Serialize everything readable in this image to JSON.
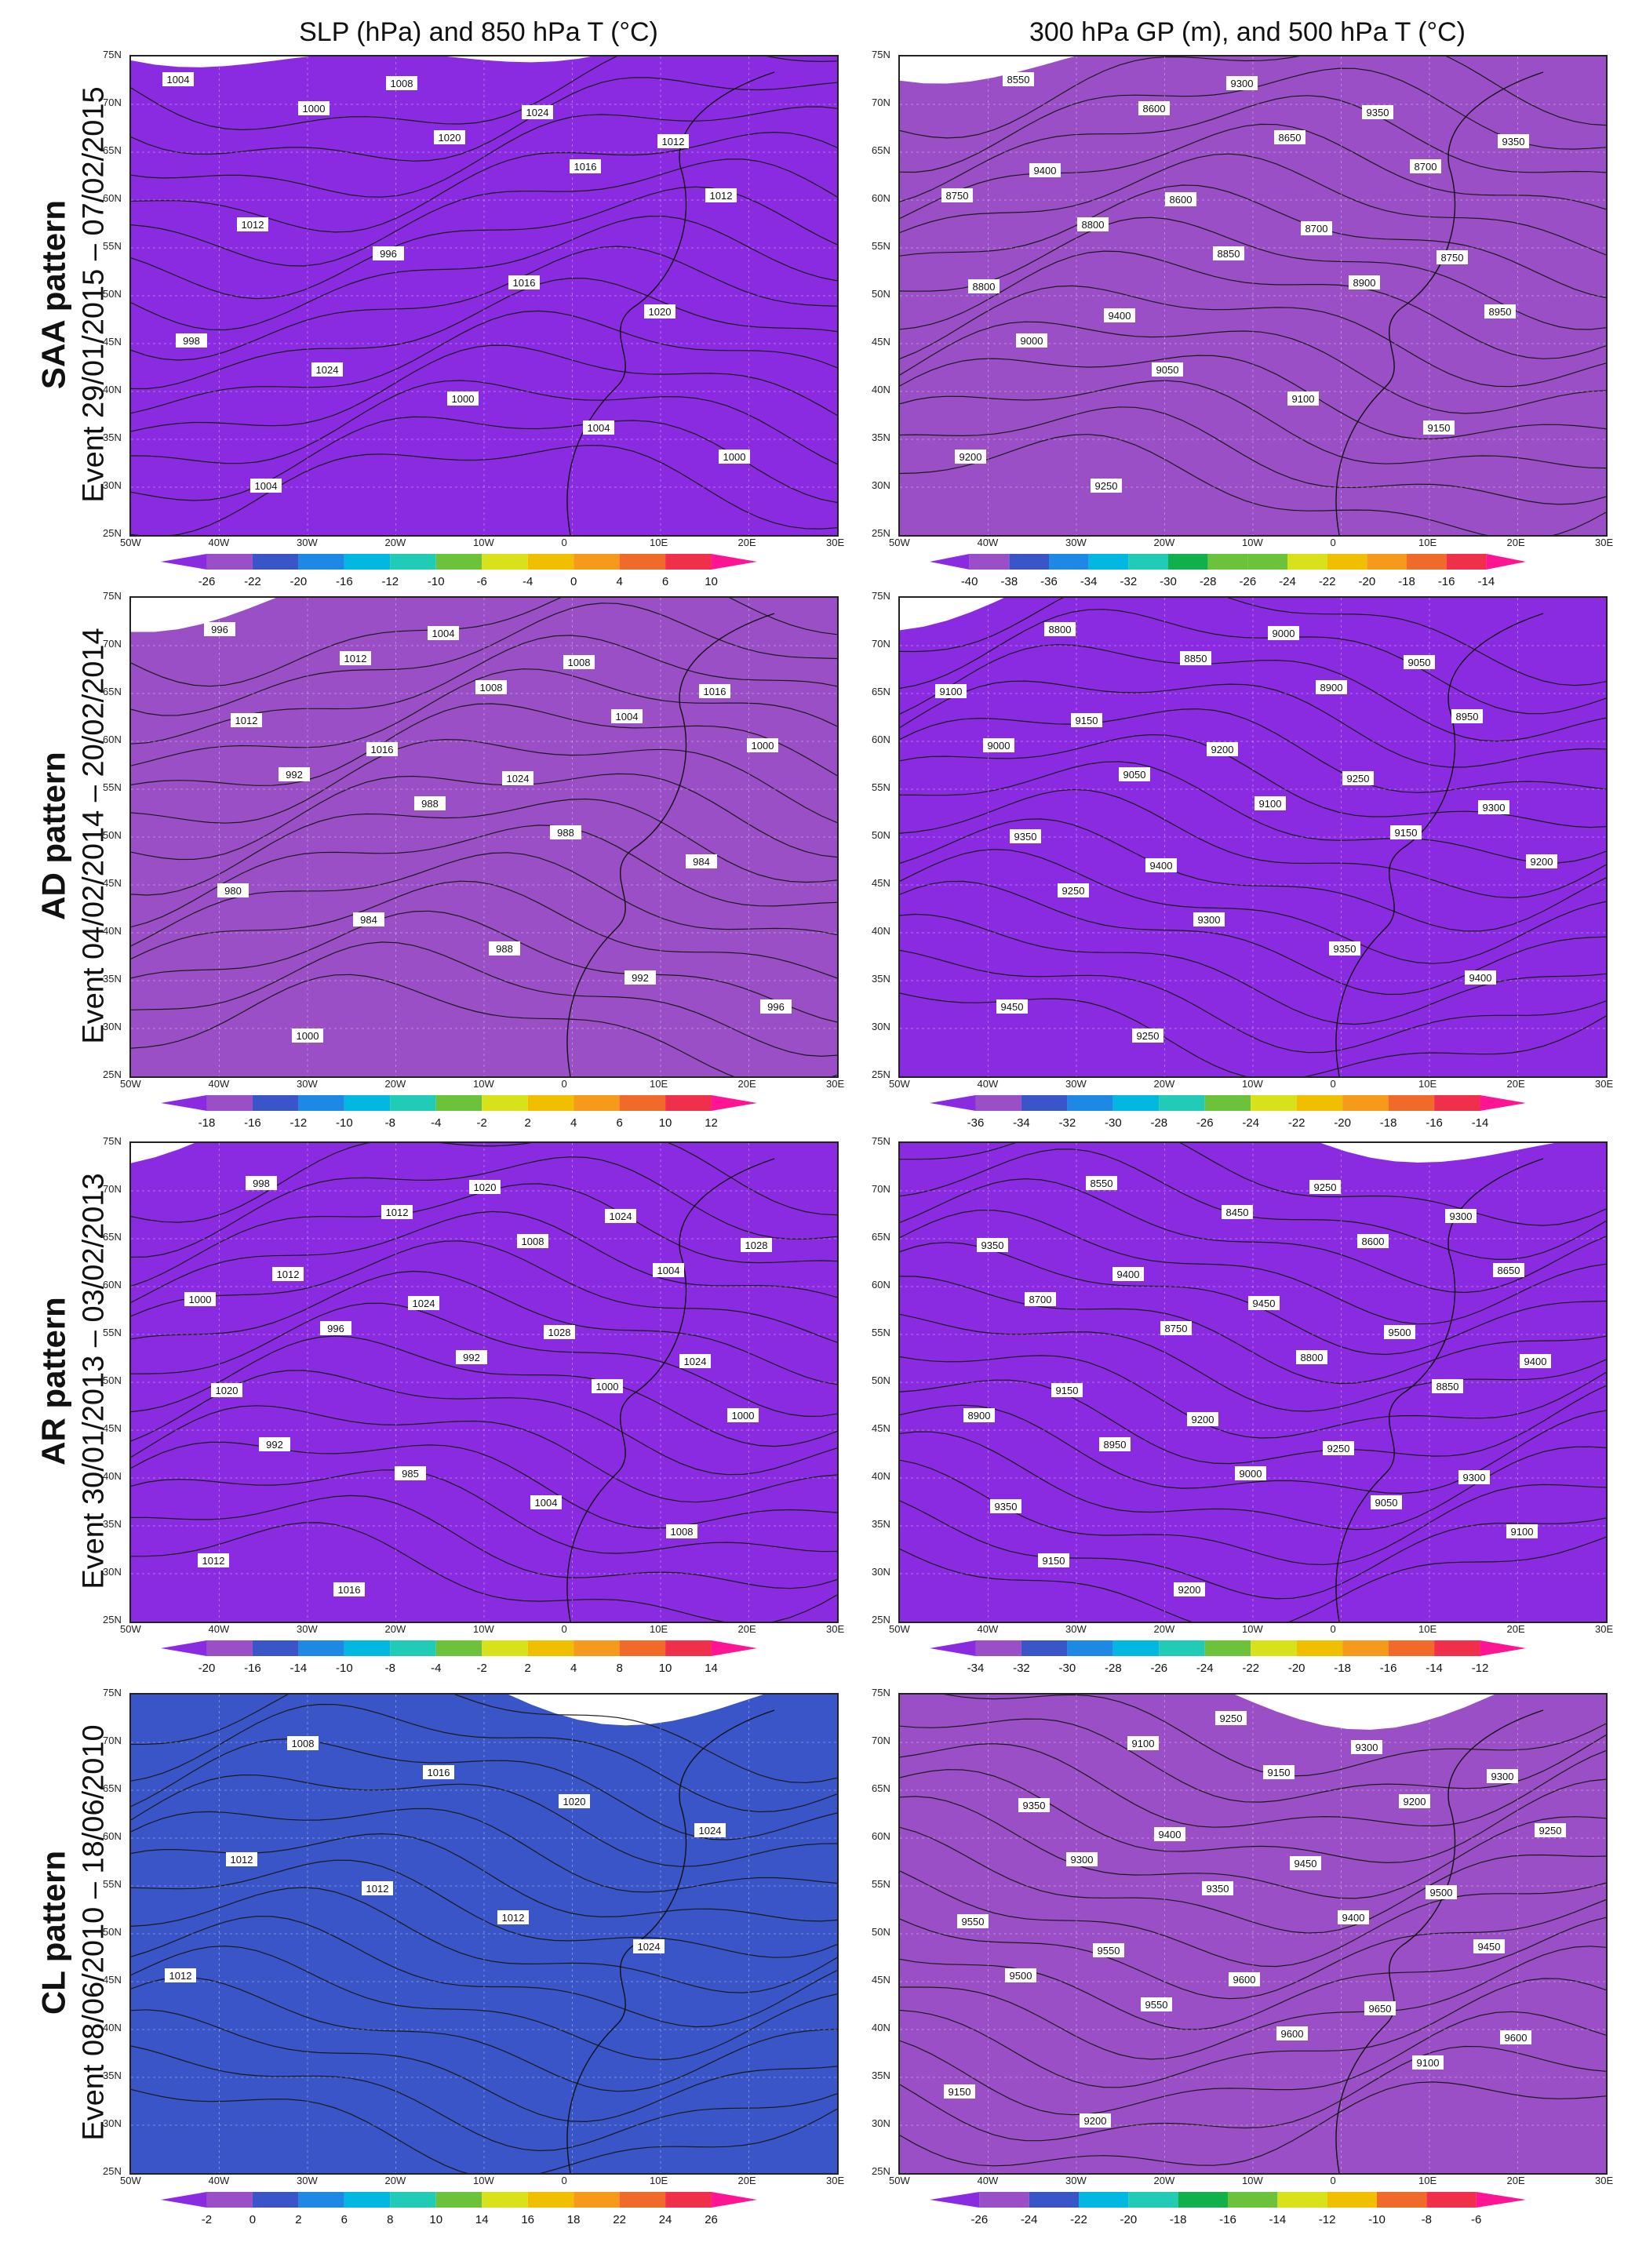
{
  "column_titles": {
    "left": "SLP (hPa) and 850 hPa T (°C)",
    "right": "300 hPa GP (m), and 500 hPa T (°C)"
  },
  "axes": {
    "lat_labels": [
      "75N",
      "70N",
      "65N",
      "60N",
      "55N",
      "50N",
      "45N",
      "40N",
      "35N",
      "30N",
      "25N"
    ],
    "lon_labels": [
      "50W",
      "40W",
      "30W",
      "20W",
      "10W",
      "0",
      "10E",
      "20E",
      "30E"
    ]
  },
  "rows": [
    {
      "pattern": "SAA pattern",
      "event": "Event 29/01/2015 – 07/02/2015",
      "left_colorbar": [
        "-26",
        "-22",
        "-20",
        "-16",
        "-12",
        "-10",
        "-6",
        "-4",
        "0",
        "4",
        "6",
        "10"
      ],
      "right_colorbar": [
        "-40",
        "-38",
        "-36",
        "-34",
        "-32",
        "-30",
        "-28",
        "-26",
        "-24",
        "-22",
        "-20",
        "-18",
        "-16",
        "-14"
      ],
      "left_contours": [
        "1004",
        "1000",
        "1020",
        "1016",
        "1012",
        "1012",
        "996",
        "1016",
        "1020",
        "998",
        "1024",
        "1000",
        "1004",
        "1000",
        "1004",
        "1008",
        "1024",
        "1012"
      ],
      "right_contours": [
        "8550",
        "8600",
        "8650",
        "8700",
        "8750",
        "8800",
        "8850",
        "8900",
        "8950",
        "9000",
        "9050",
        "9100",
        "9150",
        "9200",
        "9250",
        "9300",
        "9350",
        "9350",
        "9400",
        "8600",
        "8700",
        "8750",
        "8800",
        "9400"
      ]
    },
    {
      "pattern": "AD pattern",
      "event": "Event 04/02/2014 – 20/02/2014",
      "left_colorbar": [
        "-18",
        "-16",
        "-12",
        "-10",
        "-8",
        "-4",
        "-2",
        "2",
        "4",
        "6",
        "10",
        "12"
      ],
      "right_colorbar": [
        "-36",
        "-34",
        "-32",
        "-30",
        "-28",
        "-26",
        "-24",
        "-22",
        "-20",
        "-18",
        "-16",
        "-14"
      ],
      "left_contours": [
        "996",
        "1012",
        "1008",
        "1004",
        "1000",
        "992",
        "988",
        "988",
        "984",
        "980",
        "984",
        "988",
        "992",
        "996",
        "1000",
        "1004",
        "1008",
        "1016",
        "1012",
        "1016",
        "1024"
      ],
      "right_contours": [
        "8800",
        "8850",
        "8900",
        "8950",
        "9000",
        "9050",
        "9100",
        "9150",
        "9200",
        "9250",
        "9300",
        "9350",
        "9400",
        "9450",
        "9250",
        "9000",
        "9050",
        "9100",
        "9150",
        "9200",
        "9250",
        "9300",
        "9350",
        "9400"
      ]
    },
    {
      "pattern": "AR pattern",
      "event": "Event 30/01/2013 – 03/02/2013",
      "left_colorbar": [
        "-20",
        "-16",
        "-14",
        "-10",
        "-8",
        "-4",
        "-2",
        "2",
        "4",
        "8",
        "10",
        "14"
      ],
      "right_colorbar": [
        "-34",
        "-32",
        "-30",
        "-28",
        "-26",
        "-24",
        "-22",
        "-20",
        "-18",
        "-16",
        "-14",
        "-12"
      ],
      "left_contours": [
        "998",
        "1012",
        "1008",
        "1004",
        "1000",
        "996",
        "992",
        "1000",
        "1000",
        "992",
        "985",
        "1004",
        "1008",
        "1012",
        "1016",
        "1020",
        "1024",
        "1028",
        "1012",
        "1024",
        "1028",
        "1024",
        "1020"
      ],
      "right_contours": [
        "8550",
        "8450",
        "8600",
        "8650",
        "8700",
        "8750",
        "8800",
        "8850",
        "8900",
        "8950",
        "9000",
        "9050",
        "9100",
        "9150",
        "9200",
        "9250",
        "9300",
        "9350",
        "9400",
        "9450",
        "9500",
        "9400",
        "9150",
        "9200",
        "9250",
        "9300",
        "9350"
      ]
    },
    {
      "pattern": "CL pattern",
      "event": "Event 08/06/2010 – 18/06/2010",
      "left_colorbar": [
        "-2",
        "0",
        "2",
        "6",
        "8",
        "10",
        "14",
        "16",
        "18",
        "22",
        "24",
        "26"
      ],
      "right_colorbar": [
        "-26",
        "-24",
        "-22",
        "-20",
        "-18",
        "-16",
        "-14",
        "-12",
        "-10",
        "-8",
        "-6"
      ],
      "left_contours": [
        "1008",
        "1016",
        "1020",
        "1024",
        "1012",
        "1012",
        "1012",
        "1024",
        "1012"
      ],
      "right_contours": [
        "9100",
        "9150",
        "9200",
        "9250",
        "9300",
        "9350",
        "9400",
        "9450",
        "9500",
        "9550",
        "9600",
        "9100",
        "9150",
        "9200",
        "9250",
        "9300",
        "9300",
        "9350",
        "9400",
        "9450",
        "9500",
        "9550",
        "9550",
        "9600",
        "9650",
        "9600"
      ]
    }
  ],
  "palettes": {
    "temp": [
      "#8a2be2",
      "#9b4fc6",
      "#3a55c8",
      "#1e88e5",
      "#00b8e0",
      "#22cbb5",
      "#10b04a",
      "#6cc23a",
      "#d8e21a",
      "#f0c000",
      "#f59a1b",
      "#f06a2a",
      "#f0304a",
      "#ff1493"
    ]
  }
}
